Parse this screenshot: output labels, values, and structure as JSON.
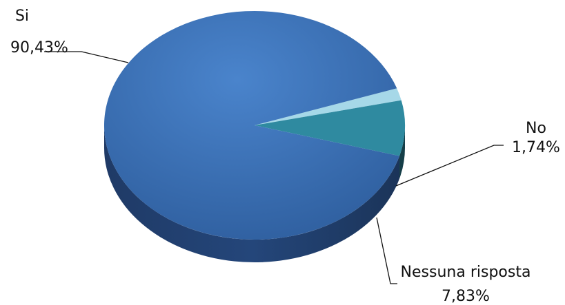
{
  "chart_data": {
    "type": "pie",
    "title": "",
    "legend": "none",
    "slices": [
      {
        "name": "Si",
        "percent_label": "90,43%",
        "value": 90.43,
        "color": "#3a6fb5"
      },
      {
        "name": "No",
        "percent_label": "1,74%",
        "value": 1.74,
        "color": "#a6d8e8"
      },
      {
        "name": "Nessuna risposta",
        "percent_label": "7,83%",
        "value": 7.83,
        "color": "#2f8aa0"
      }
    ]
  }
}
